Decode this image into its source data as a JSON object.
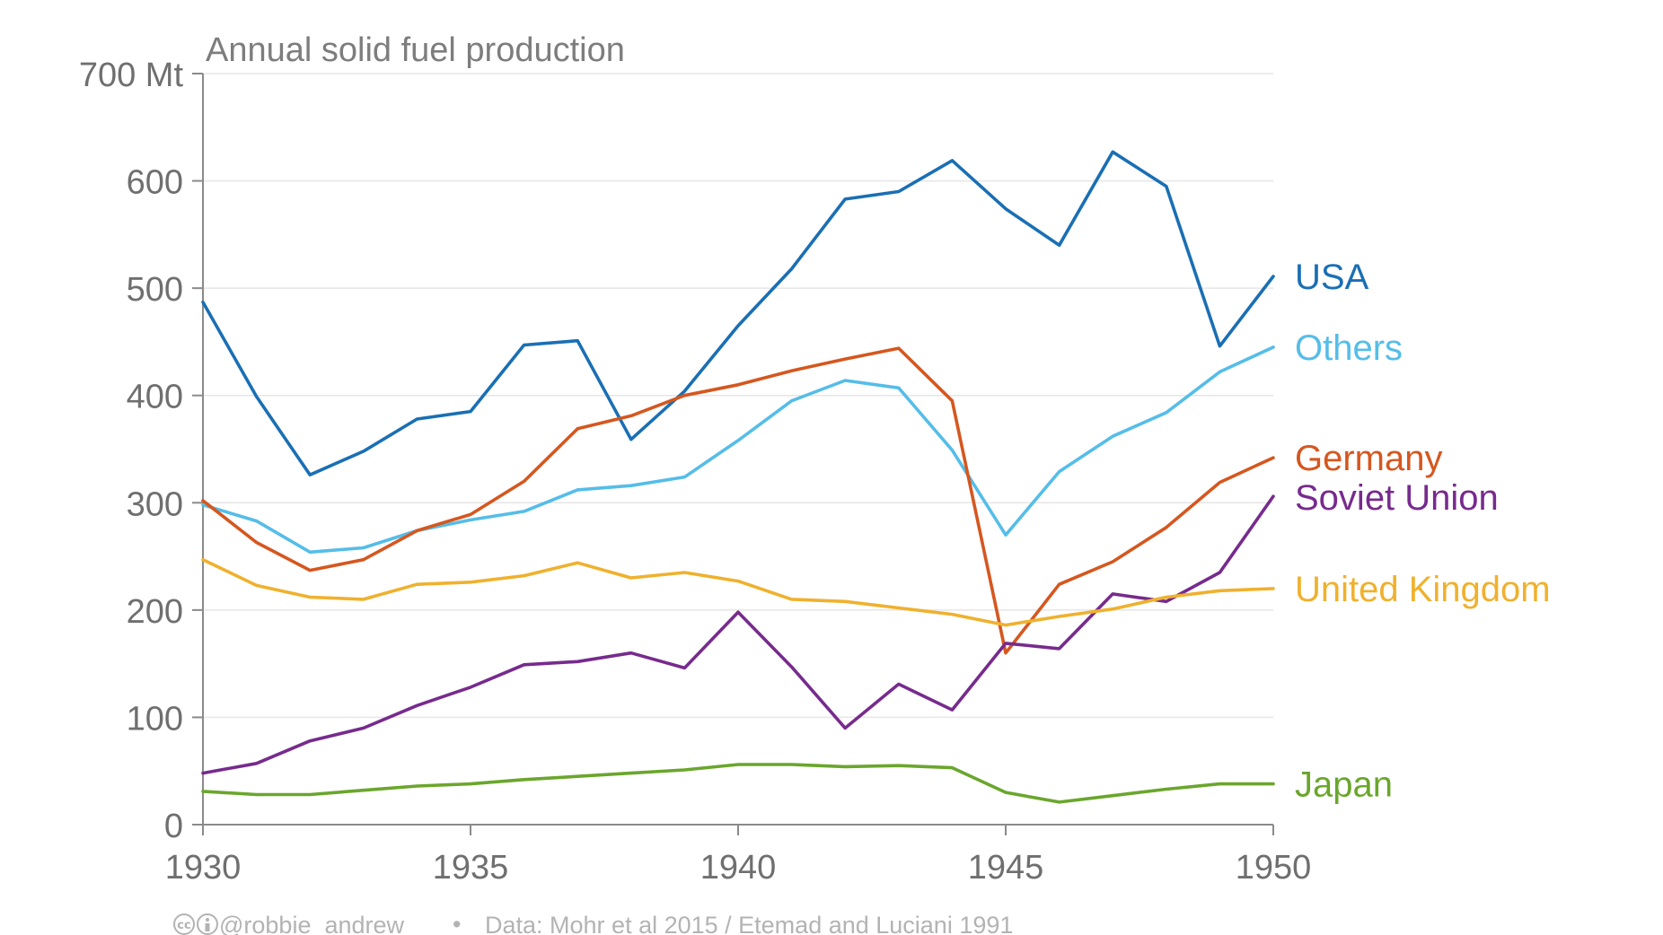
{
  "chart_data": {
    "type": "line",
    "title": "Annual solid fuel production",
    "xlabel": "",
    "ylabel": "",
    "x": [
      1930,
      1931,
      1932,
      1933,
      1934,
      1935,
      1936,
      1937,
      1938,
      1939,
      1940,
      1941,
      1942,
      1943,
      1944,
      1945,
      1946,
      1947,
      1948,
      1949,
      1950
    ],
    "xlim": [
      1930,
      1950
    ],
    "ylim": [
      0,
      700
    ],
    "x_ticks": [
      "1930",
      "1935",
      "1940",
      "1945",
      "1950"
    ],
    "x_tick_values": [
      1930,
      1935,
      1940,
      1945,
      1950
    ],
    "y_ticks": [
      "0",
      "100",
      "200",
      "300",
      "400",
      "500",
      "600",
      "700 Mt"
    ],
    "y_tick_values": [
      0,
      100,
      200,
      300,
      400,
      500,
      600,
      700
    ],
    "grid": "horizontal",
    "legend": "direct labels at right end",
    "series": [
      {
        "name": "USA",
        "color": "#1a6fb4",
        "values": [
          487,
          399,
          326,
          348,
          378,
          385,
          447,
          451,
          359,
          404,
          465,
          518,
          583,
          590,
          619,
          574,
          540,
          627,
          595,
          446,
          511
        ]
      },
      {
        "name": "Others",
        "color": "#55bde8",
        "values": [
          298,
          283,
          254,
          258,
          274,
          284,
          292,
          312,
          316,
          324,
          358,
          395,
          414,
          407,
          349,
          270,
          329,
          362,
          384,
          422,
          445
        ]
      },
      {
        "name": "Germany",
        "color": "#d5571f",
        "values": [
          302,
          263,
          237,
          247,
          274,
          289,
          320,
          369,
          381,
          400,
          410,
          423,
          434,
          444,
          395,
          160,
          224,
          245,
          277,
          319,
          342
        ]
      },
      {
        "name": "Soviet Union",
        "color": "#772b8d",
        "values": [
          48,
          57,
          78,
          90,
          111,
          128,
          149,
          152,
          160,
          146,
          198,
          147,
          90,
          131,
          107,
          169,
          164,
          215,
          208,
          235,
          306
        ]
      },
      {
        "name": "United Kingdom",
        "color": "#efb12d",
        "values": [
          247,
          223,
          212,
          210,
          224,
          226,
          232,
          244,
          230,
          235,
          227,
          210,
          208,
          202,
          196,
          186,
          194,
          201,
          212,
          218,
          220
        ]
      },
      {
        "name": "Japan",
        "color": "#6aa62c",
        "values": [
          31,
          28,
          28,
          32,
          36,
          38,
          42,
          45,
          48,
          51,
          56,
          56,
          54,
          55,
          53,
          30,
          21,
          27,
          33,
          38,
          38
        ]
      }
    ]
  },
  "footer": {
    "handle": "@robbie_andrew",
    "separator": "•",
    "source": "Data: Mohr et al 2015 / Etemad and Luciani 1991",
    "icons": [
      "cc-icon",
      "by-icon"
    ]
  }
}
